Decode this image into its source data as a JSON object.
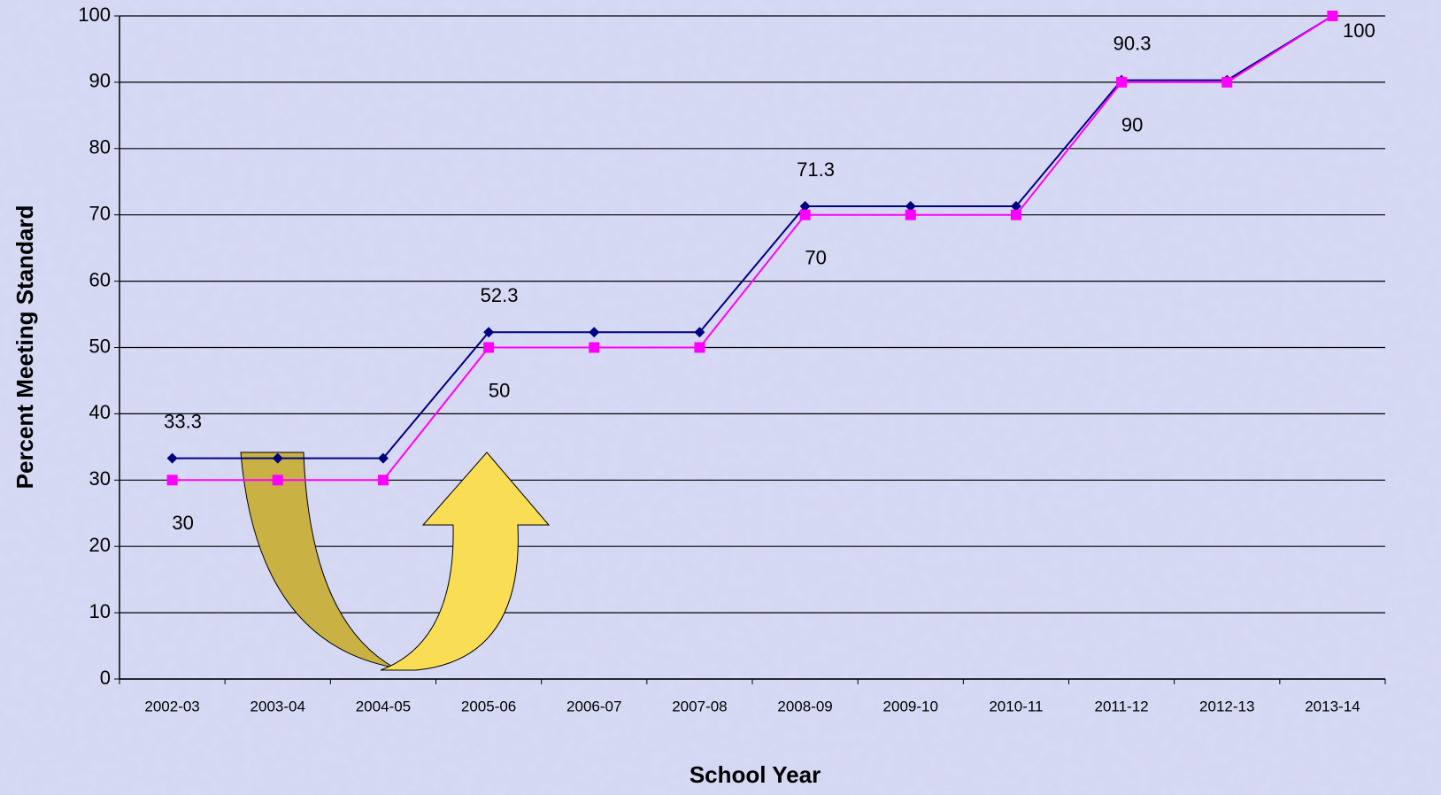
{
  "chart_data": {
    "type": "line",
    "y_label": "Percent Meeting Standard",
    "x_label": "School Year",
    "categories": [
      "2002-03",
      "2003-04",
      "2004-05",
      "2005-06",
      "2006-07",
      "2007-08",
      "2008-09",
      "2009-10",
      "2010-11",
      "2011-12",
      "2012-13",
      "2013-14"
    ],
    "series": [
      {
        "color": "#000080",
        "marker": "diamond",
        "values": [
          33.3,
          33.3,
          33.3,
          52.3,
          52.3,
          52.3,
          71.3,
          71.3,
          71.3,
          90.3,
          90.3,
          100
        ],
        "value_labels": [
          "33.3",
          null,
          null,
          "52.3",
          null,
          null,
          "71.3",
          null,
          null,
          "90.3",
          null,
          null
        ]
      },
      {
        "color": "#ff00ff",
        "marker": "square",
        "values": [
          30,
          30,
          30,
          50,
          50,
          50,
          70,
          70,
          70,
          90,
          90,
          100
        ],
        "value_labels": [
          "30",
          null,
          null,
          "50",
          null,
          null,
          "70",
          null,
          null,
          "90",
          null,
          "100"
        ]
      }
    ],
    "ylim": [
      0,
      100
    ],
    "yticks": [
      0,
      10,
      20,
      30,
      40,
      50,
      60,
      70,
      80,
      90,
      100
    ],
    "grid": true
  }
}
